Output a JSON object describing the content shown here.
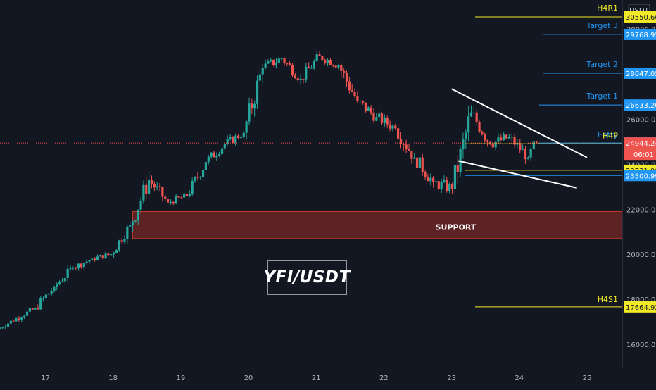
{
  "chart_data": {
    "type": "candlestick",
    "symbol_badge": "YFI/USDT",
    "currency": "USDT",
    "y_ticks": [
      16000,
      18000,
      20000,
      22000,
      24000,
      26000,
      28000,
      30000
    ],
    "y_tick_labels": [
      "16000.00",
      "18000.00",
      "20000.00",
      "22000.00",
      "24000.00",
      "26000.00",
      "28000.00",
      "30000.00"
    ],
    "ylim": [
      15000,
      31300
    ],
    "x_ticks": [
      {
        "label": "17",
        "day": 17
      },
      {
        "label": "18",
        "day": 18
      },
      {
        "label": "19",
        "day": 19
      },
      {
        "label": "20",
        "day": 20
      },
      {
        "label": "21",
        "day": 21
      },
      {
        "label": "22",
        "day": 22
      },
      {
        "label": "23",
        "day": 23
      },
      {
        "label": "24",
        "day": 24
      },
      {
        "label": "25",
        "day": 25
      }
    ],
    "xlim": [
      16.33,
      25.52
    ],
    "candles_approx": [
      [
        16.33,
        16660,
        17250,
        16500,
        17150
      ],
      [
        16.61,
        17150,
        17800,
        16900,
        17600
      ],
      [
        16.89,
        17600,
        18850,
        17300,
        18550
      ],
      [
        17.17,
        18550,
        19700,
        18200,
        19400
      ],
      [
        17.45,
        19400,
        20100,
        19100,
        19800
      ],
      [
        17.73,
        19800,
        20300,
        19400,
        20000
      ],
      [
        18.01,
        20000,
        21500,
        19700,
        21300
      ],
      [
        18.29,
        21300,
        24100,
        21000,
        23300
      ],
      [
        18.57,
        23300,
        23500,
        21600,
        22300
      ],
      [
        18.85,
        22300,
        23000,
        21900,
        22600
      ],
      [
        19.13,
        22600,
        24300,
        22300,
        24100
      ],
      [
        19.41,
        24100,
        25200,
        23500,
        24900
      ],
      [
        19.69,
        24900,
        25800,
        24400,
        25400
      ],
      [
        19.97,
        25400,
        28600,
        25000,
        28300
      ],
      [
        20.25,
        28300,
        29300,
        27700,
        28700
      ],
      [
        20.53,
        28700,
        28900,
        27200,
        27800
      ],
      [
        20.81,
        27800,
        29300,
        27500,
        28800
      ],
      [
        21.09,
        28800,
        29600,
        28200,
        28400
      ],
      [
        21.37,
        28400,
        28500,
        25700,
        26800
      ],
      [
        21.65,
        26800,
        27300,
        25300,
        26100
      ],
      [
        21.93,
        26100,
        26400,
        24700,
        25600
      ],
      [
        22.21,
        25600,
        26000,
        23600,
        24300
      ],
      [
        22.49,
        24300,
        24600,
        22300,
        23200
      ],
      [
        22.77,
        23200,
        23600,
        21600,
        22900
      ],
      [
        23.05,
        22900,
        27000,
        22500,
        26300
      ],
      [
        23.33,
        26300,
        26700,
        24200,
        24900
      ],
      [
        23.61,
        24900,
        26100,
        24400,
        25200
      ],
      [
        23.89,
        25200,
        25600,
        23800,
        24300
      ],
      [
        24.17,
        24300,
        25800,
        23800,
        25000
      ]
    ],
    "levels": [
      {
        "name": "H4R1",
        "value": 30550.66,
        "label": "30550.66",
        "color": "#f3ea27"
      },
      {
        "name": "Target 3",
        "value": 29768.95,
        "label": "29768.95",
        "color": "#2196f3"
      },
      {
        "name": "Target 2",
        "value": 28047.05,
        "label": "28047.05",
        "color": "#2196f3"
      },
      {
        "name": "Target 1",
        "value": 26633.2,
        "label": "26633.20",
        "color": "#2196f3"
      },
      {
        "name": "Entry",
        "value": 24944.24,
        "label": "24944.24",
        "color": "#2196f3"
      },
      {
        "name": "H4P",
        "value": 24908.55,
        "label": "24908.55",
        "color": "#f3ea27"
      },
      {
        "name": "",
        "value": 23731.9,
        "label": "23731.90",
        "color": "#f3ea27"
      },
      {
        "name": "",
        "value": 23500.99,
        "label": "23500.99",
        "color": "#2196f3"
      },
      {
        "name": "H4S1",
        "value": 17664.92,
        "label": "17664.92",
        "color": "#f3ea27"
      }
    ],
    "current_price": {
      "value": 24944.24,
      "label": "24944.24",
      "countdown": "06:01",
      "color": "#ef5350"
    },
    "support_zone": {
      "label": "SUPPORT",
      "x_start": 18.29,
      "x_end": 25.52,
      "y_low": 20700,
      "y_high": 21900,
      "fill": "#6b2423",
      "border": "#c0392b"
    },
    "wedge_lines": [
      {
        "from": [
          23.0,
          27350
        ],
        "to": [
          25.0,
          24300
        ]
      },
      {
        "from": [
          23.1,
          24150
        ],
        "to": [
          24.85,
          22950
        ]
      }
    ],
    "bull_color": "#26a69a",
    "bear_color": "#ef5350"
  }
}
